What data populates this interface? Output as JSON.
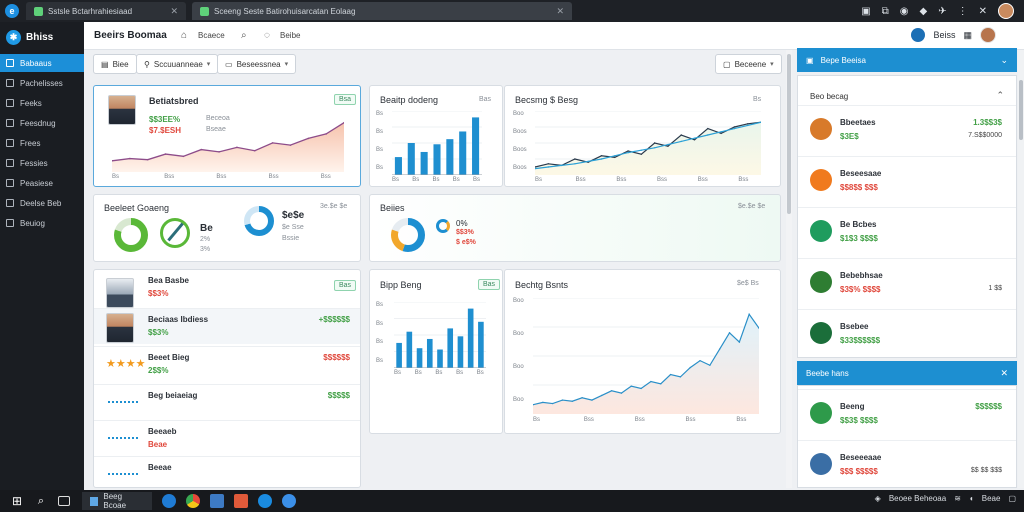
{
  "colors": {
    "accent": "#1d8fd1",
    "positive": "#43a047",
    "negative": "#e0483c",
    "sidebar": "#1a1d22",
    "chart_bar": "#1f8fd0"
  },
  "browser": {
    "tabs": [
      {
        "label": "Sstsle Bctarhrahiesiaad"
      },
      {
        "label": "Sceeng Seste Batirohuisarcatan Eolaag"
      }
    ]
  },
  "app": {
    "name": "Bhiss"
  },
  "sidebar": {
    "items": [
      {
        "label": "Babaaus",
        "icon": "dashboard-icon",
        "active": true
      },
      {
        "label": "Pachelisses",
        "icon": "folder-icon",
        "active": false
      },
      {
        "label": "Feeks",
        "icon": "grid-icon",
        "active": false
      },
      {
        "label": "Feesdnug",
        "icon": "chart-icon",
        "active": false
      },
      {
        "label": "Frees",
        "icon": "doc-icon",
        "active": false
      },
      {
        "label": "Fessies",
        "icon": "list-icon",
        "active": false
      },
      {
        "label": "Peasiese",
        "icon": "user-icon",
        "active": false
      },
      {
        "label": "Deelse Beb",
        "icon": "settings-icon",
        "active": false
      },
      {
        "label": "Beuiog",
        "icon": "help-icon",
        "active": false
      }
    ]
  },
  "header": {
    "title": "Beeirs Boomaa",
    "search_label": "Bcaece",
    "bell_label": "Beibe",
    "user_label": "Beiss"
  },
  "toolbar": {
    "filter_label": "Biee",
    "view_label": "Sccuuanneae",
    "range_label": "Beseessnea",
    "export_label": "Beceene"
  },
  "cards": {
    "profile": {
      "name": "Betiatsbred",
      "badge": "Bsa",
      "line1": "$$3EE%",
      "line1_note": "Beceoa",
      "line2": "$7.$ESH",
      "line2_note": "Bseae",
      "x_ticks": [
        "Bs",
        "Bss",
        "Bss",
        "Bss",
        "Bss"
      ]
    },
    "bars1": {
      "title": "Beaitp dodeng",
      "badge": "Bas",
      "y_ticks": [
        "Bs",
        "Bs",
        "Bs",
        "Bs"
      ],
      "x_ticks": [
        "Bs",
        "Bs",
        "Bs",
        "Bs",
        "Bs"
      ]
    },
    "line1": {
      "title": "Becsmg $ Besg",
      "corner": "Bs",
      "y_ticks": [
        "Boo",
        "Boos",
        "Boos",
        "Boos"
      ],
      "x_ticks": [
        "Bs",
        "Bss",
        "Bss",
        "Bss",
        "Bss",
        "Bss"
      ]
    },
    "stats": {
      "title": "Beeleet Goaeng",
      "corner": "3e.$e $e",
      "val1": "Be",
      "val1_sub": "2%",
      "val1_sub2": "3%",
      "val2": "$e$e",
      "val2_sub": "$e Sse",
      "val2_sub2": "Bssie"
    },
    "small_donut": {
      "title": "Beiies",
      "corner": "$e.$e $e",
      "pct": "0%",
      "sub": "$$3%",
      "sub2": "$ e$%"
    },
    "list": {
      "badge": "Bas",
      "rows": [
        {
          "name": "Bea Basbe",
          "sub": "$$3%",
          "amount": "",
          "sub_class": "neg"
        },
        {
          "name": "Beciaas Ibdiess",
          "sub": "$$3%",
          "amount": "+$$$$$$",
          "sub_class": "pos"
        },
        {
          "name": "Beeet Bieg",
          "sub": "2$$%",
          "amount": "$$$$$$",
          "sub_class": "pos"
        },
        {
          "name": "Beg beiaeiag",
          "sub": "",
          "amount": "$$$$$",
          "sub_class": "pos"
        },
        {
          "name": "Beeaeb",
          "sub": "Beae",
          "amount": "",
          "sub_class": "neg"
        },
        {
          "name": "Beeae",
          "sub": "",
          "amount": "",
          "sub_class": "neg"
        }
      ]
    },
    "bars2": {
      "title": "Bipp Beng",
      "badge": "Bas",
      "y_ticks": [
        "Bs",
        "Bs",
        "Bs",
        "Bs"
      ],
      "x_ticks": [
        "Bs",
        "Bs",
        "Bs",
        "Bs",
        "Bs"
      ]
    },
    "line2": {
      "title": "Bechtg Bsnts",
      "corner": "$e$ Bs",
      "y_ticks": [
        "Boo",
        "Boo",
        "Boo",
        "Boo"
      ],
      "x_ticks": [
        "Bs",
        "Bss",
        "Bss",
        "Bss",
        "Bss"
      ]
    }
  },
  "right_panel": {
    "header1": "Bepe Beeisa",
    "section_title": "Beo becag",
    "items1": [
      {
        "name": "Bbeetaes",
        "sub": "$3E$",
        "right": "1.3$$3$",
        "right2": "7.S$$0000",
        "right_class": "pos",
        "sub_class": "pos",
        "avatar": "#d87a2a"
      },
      {
        "name": "Beseesaae",
        "sub": "$$8$$ $$$",
        "right": "",
        "right2": "",
        "right_class": "pos",
        "sub_class": "neg",
        "avatar": "#f07a1e"
      },
      {
        "name": "Be Bcbes",
        "sub": "$1$3 $$$$",
        "right": "",
        "right2": "",
        "right_class": "pos",
        "sub_class": "pos",
        "avatar": "#1f9c5e"
      },
      {
        "name": "Bebebhsae",
        "sub": "$3$% $$$$",
        "right": "",
        "right2": "1 $$",
        "right_class": "pos",
        "sub_class": "neg",
        "avatar": "#2e7d32"
      },
      {
        "name": "Bsebee",
        "sub": "$33$$$$$$",
        "right": "",
        "right2": "",
        "right_class": "pos",
        "sub_class": "pos",
        "avatar": "#1b6e3a"
      }
    ],
    "header2": "Beebe hans",
    "items2": [
      {
        "name": "Beeng",
        "sub": "$$3$ $$$$",
        "right": "$$$$$$",
        "right2": "",
        "right_class": "pos",
        "sub_class": "pos",
        "avatar": "#2e9a4a"
      },
      {
        "name": "Beseeeaae",
        "sub": "$$$ $$$$$",
        "right": "",
        "right2": "$$ $$ $$$",
        "right_class": "neg",
        "sub_class": "neg",
        "avatar": "#3a6ea5"
      }
    ]
  },
  "taskbar": {
    "app_label": "Beeg Bcoae",
    "tray_label": "Beoee Beheoaa",
    "time_label": "Beae"
  },
  "chart_data": [
    {
      "type": "area",
      "title": "",
      "x": [
        1,
        2,
        3,
        4,
        5,
        6,
        7,
        8,
        9,
        10,
        11,
        12,
        13,
        14
      ],
      "series": [
        {
          "values": [
            10,
            12,
            11,
            16,
            14,
            20,
            18,
            22,
            19,
            26,
            24,
            30,
            34,
            44
          ]
        }
      ],
      "ylim": [
        0,
        50
      ]
    },
    {
      "type": "bar",
      "title": "",
      "values": [
        28,
        50,
        36,
        48,
        56,
        68,
        90
      ],
      "ylim": [
        0,
        100
      ]
    },
    {
      "type": "line",
      "title": "",
      "x": [
        1,
        2,
        3,
        4,
        5,
        6,
        7,
        8,
        9,
        10,
        11,
        12,
        13,
        14,
        15,
        16,
        17,
        18
      ],
      "series": [
        {
          "values": [
            10,
            14,
            12,
            20,
            16,
            24,
            22,
            30,
            26,
            40,
            36,
            50,
            44,
            58,
            52,
            60,
            64,
            66
          ]
        },
        {
          "values": [
            8,
            10,
            12,
            14,
            17,
            20,
            24,
            28,
            31,
            34,
            38,
            42,
            46,
            50,
            54,
            58,
            62,
            66
          ]
        }
      ],
      "ylim": [
        0,
        80
      ]
    },
    {
      "type": "pie",
      "title": "",
      "slices": [
        {
          "value": 80,
          "color": "#5ab838"
        },
        {
          "value": 20,
          "color": "#d8e8d0"
        }
      ]
    },
    {
      "type": "pie",
      "title": "",
      "slices": [
        {
          "value": 70,
          "color": "#1d8fd1"
        },
        {
          "value": 30,
          "color": "#cfe6f5"
        }
      ]
    },
    {
      "type": "pie",
      "title": "",
      "slices": [
        {
          "value": 55,
          "color": "#1d8fd1"
        },
        {
          "value": 25,
          "color": "#f2a72b"
        },
        {
          "value": 20,
          "color": "#e6ecf1"
        }
      ]
    },
    {
      "type": "bar",
      "title": "",
      "values": [
        38,
        55,
        30,
        44,
        28,
        60,
        48,
        90,
        70
      ],
      "ylim": [
        0,
        100
      ]
    },
    {
      "type": "line",
      "title": "",
      "x": [
        1,
        2,
        3,
        4,
        5,
        6,
        7,
        8,
        9,
        10,
        11,
        12,
        13,
        14,
        15,
        16,
        17,
        18,
        19,
        20,
        21,
        22,
        23,
        24
      ],
      "series": [
        {
          "values": [
            8,
            10,
            9,
            12,
            11,
            14,
            12,
            16,
            20,
            18,
            24,
            22,
            28,
            26,
            34,
            32,
            40,
            46,
            42,
            56,
            70,
            62,
            86,
            74
          ]
        }
      ],
      "ylim": [
        0,
        100
      ]
    }
  ]
}
